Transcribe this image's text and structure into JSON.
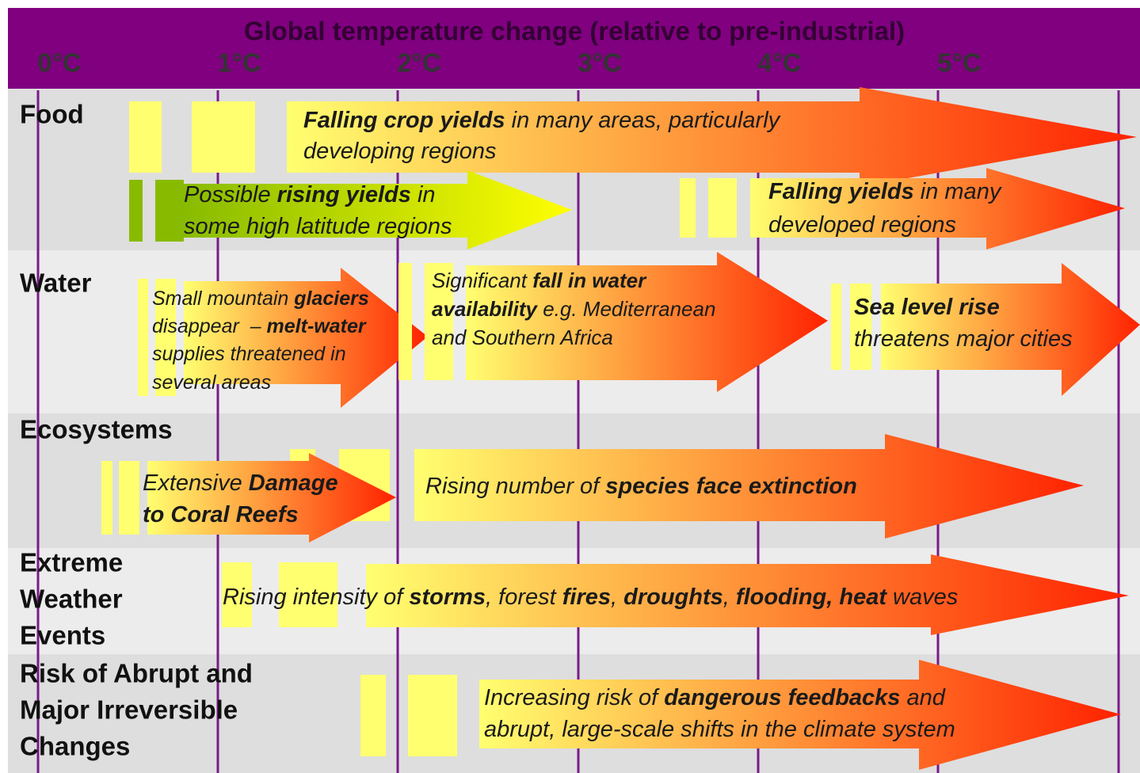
{
  "header": {
    "title": "Global temperature change (relative to pre-industrial)",
    "ticks": [
      "0°C",
      "1°C",
      "2°C",
      "3°C",
      "4°C",
      "5°C"
    ]
  },
  "rows": [
    {
      "label": [
        "Food"
      ],
      "arrows": [
        {
          "lines": [
            [
              {
                "text": "Falling crop yields",
                "bold": true
              },
              {
                "text": " in many areas, particularly"
              }
            ],
            [
              {
                "text": "developing regions"
              }
            ]
          ]
        },
        {
          "lines": [
            [
              {
                "text": "Possible "
              },
              {
                "text": "rising yields",
                "bold": true
              },
              {
                "text": " in"
              }
            ],
            [
              {
                "text": "some high latitude regions"
              }
            ]
          ]
        },
        {
          "lines": [
            [
              {
                "text": "Falling yields",
                "bold": true
              },
              {
                "text": " in many"
              }
            ],
            [
              {
                "text": "developed regions"
              }
            ]
          ]
        }
      ]
    },
    {
      "label": [
        "Water"
      ],
      "arrows": [
        {
          "lines": [
            [
              {
                "text": "Small mountain "
              },
              {
                "text": "glaciers",
                "bold": true
              }
            ],
            [
              {
                "text": "disappear  – "
              },
              {
                "text": "melt-water",
                "bold": true
              }
            ],
            [
              {
                "text": "supplies threatened in"
              }
            ],
            [
              {
                "text": "several areas"
              }
            ]
          ]
        },
        {
          "lines": [
            [
              {
                "text": "Significant "
              },
              {
                "text": "fall in water",
                "bold": true
              }
            ],
            [
              {
                "text": "availability",
                "bold": true
              },
              {
                "text": " e.g. Mediterranean"
              }
            ],
            [
              {
                "text": "and Southern Africa"
              }
            ]
          ]
        },
        {
          "lines": [
            [
              {
                "text": "Sea level rise",
                "bold": true
              }
            ],
            [
              {
                "text": "threatens major cities"
              }
            ]
          ]
        }
      ]
    },
    {
      "label": [
        "Ecosystems"
      ],
      "arrows": [
        {
          "lines": [
            [
              {
                "text": "Extensive "
              },
              {
                "text": "Damage",
                "bold": true
              }
            ],
            [
              {
                "text": "to Coral Reefs",
                "bold": true
              }
            ]
          ]
        },
        {
          "lines": [
            [
              {
                "text": "Rising number of "
              },
              {
                "text": "species face extinction",
                "bold": true
              }
            ]
          ]
        }
      ]
    },
    {
      "label": [
        "Extreme",
        "Weather",
        "Events"
      ],
      "arrows": [
        {
          "lines": [
            [
              {
                "text": "Rising intensity of "
              },
              {
                "text": "storms",
                "bold": true
              },
              {
                "text": ", forest "
              },
              {
                "text": "fires",
                "bold": true
              },
              {
                "text": ", "
              },
              {
                "text": "droughts",
                "bold": true
              },
              {
                "text": ", "
              },
              {
                "text": "flooding, heat",
                "bold": true
              },
              {
                "text": " waves"
              }
            ]
          ]
        }
      ]
    },
    {
      "label": [
        "Risk of Abrupt and",
        "Major Irreversible",
        "Changes"
      ],
      "arrows": [
        {
          "lines": [
            [
              {
                "text": "Increasing risk of "
              },
              {
                "text": "dangerous feedbacks",
                "bold": true
              },
              {
                "text": " and"
              }
            ],
            [
              {
                "text": "abrupt, large-scale shifts in the climate system"
              }
            ]
          ]
        }
      ]
    }
  ]
}
